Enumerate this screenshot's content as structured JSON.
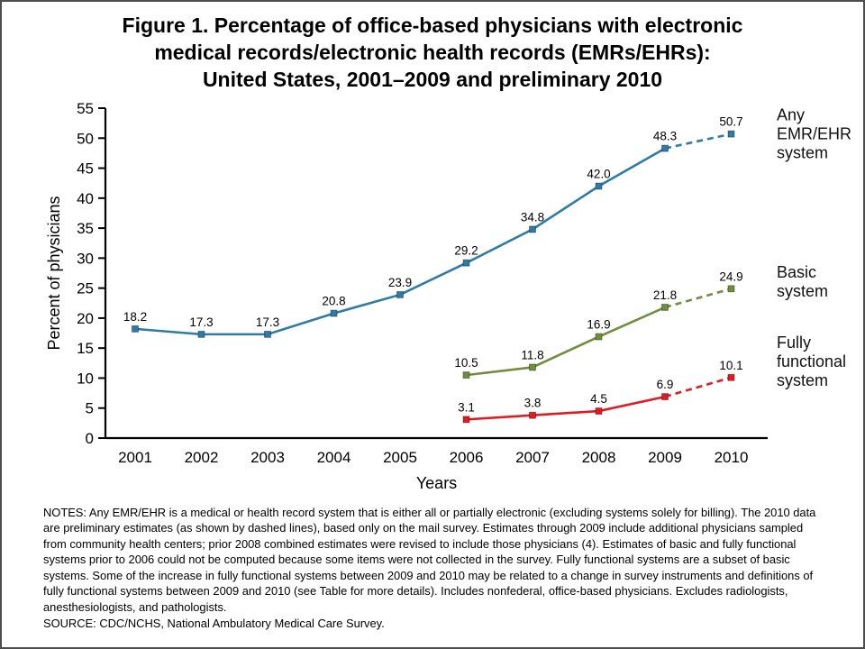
{
  "figure": {
    "title_lines": [
      "Figure 1. Percentage of office-based physicians with electronic",
      "medical records/electronic health records (EMRs/EHRs):",
      "United States, 2001–2009 and preliminary 2010"
    ]
  },
  "chart_data": {
    "type": "line",
    "x": [
      2001,
      2002,
      2003,
      2004,
      2005,
      2006,
      2007,
      2008,
      2009,
      2010
    ],
    "series": [
      {
        "name": "Any EMR/EHR system",
        "label_lines": [
          "Any",
          "EMR/EHR",
          "system"
        ],
        "color": "#2e7ba6",
        "values": [
          18.2,
          17.3,
          17.3,
          20.8,
          23.9,
          29.2,
          34.8,
          42.0,
          48.3,
          50.7
        ],
        "dashed_from_x": 2009,
        "label_dy": 0
      },
      {
        "name": "Basic system",
        "label_lines": [
          "Basic",
          "system"
        ],
        "color": "#6f8f3f",
        "values": [
          null,
          null,
          null,
          null,
          null,
          10.5,
          11.8,
          16.9,
          21.8,
          24.9
        ],
        "dashed_from_x": 2009,
        "label_dy": -8
      },
      {
        "name": "Fully functional system",
        "label_lines": [
          "Fully",
          "functional",
          "system"
        ],
        "color": "#e11b22",
        "values": [
          null,
          null,
          null,
          null,
          null,
          3.1,
          3.8,
          4.5,
          6.9,
          10.1
        ],
        "dashed_from_x": 2009,
        "label_dy": -18
      }
    ],
    "title": "Figure 1. Percentage of office-based physicians with electronic medical records/electronic health records (EMRs/EHRs): United States, 2001–2009 and preliminary 2010",
    "xlabel": "Years",
    "ylabel": "Percent of physicians",
    "ylim": [
      0,
      55
    ],
    "ytick_step": 5,
    "grid": false,
    "legend_position": "right-of-lines",
    "dashed_segment_meaning": "preliminary 2010 estimates"
  },
  "notes": {
    "notes_text": "NOTES: Any EMR/EHR is a medical or health record system that is either all or partially electronic (excluding systems solely for billing). The 2010 data are preliminary estimates (as shown by dashed lines), based only on the mail survey. Estimates through 2009 include additional physicians sampled from community health centers; prior 2008 combined estimates were revised to include those physicians (4). Estimates of basic and fully functional systems prior to 2006 could not be computed because some items were not collected in the survey. Fully functional systems are a subset of basic systems. Some of the increase in fully functional systems between 2009 and 2010 may be related to a change in survey instruments and definitions of fully functional systems between 2009 and 2010 (see Table for more details). Includes nonfederal, office-based physicians. Excludes radiologists, anesthesiologists, and pathologists.",
    "source_text": "SOURCE: CDC/NCHS, National Ambulatory Medical Care Survey."
  }
}
